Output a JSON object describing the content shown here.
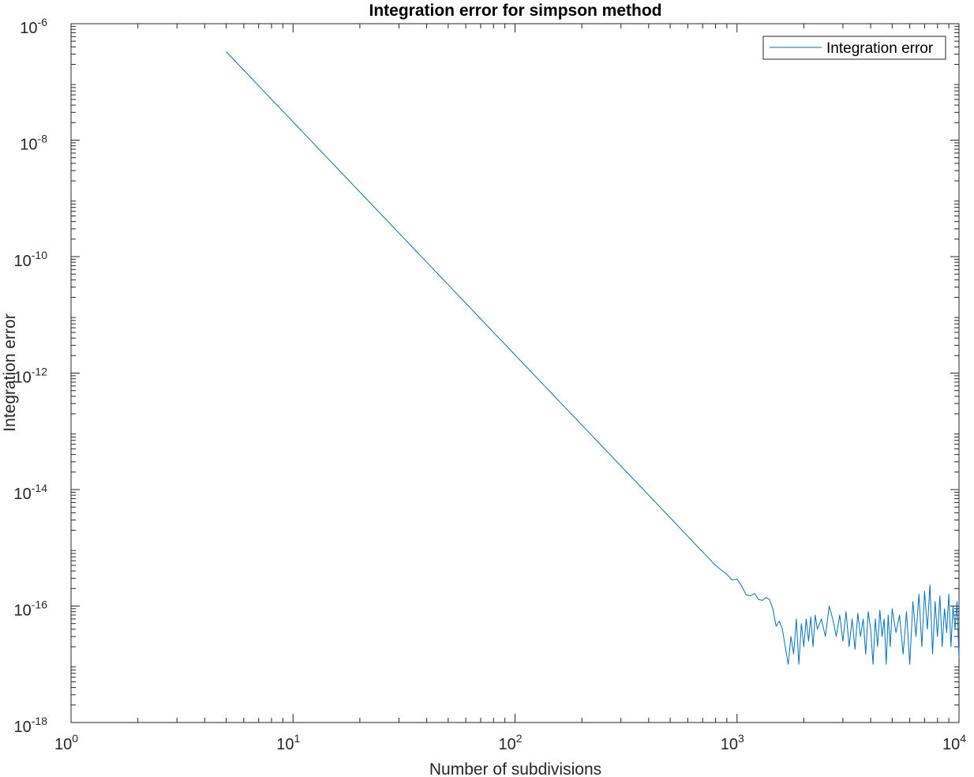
{
  "chart_data": {
    "type": "line",
    "title": "Integration error for simpson method",
    "xlabel": "Number of subdivisions",
    "ylabel": "Integration error",
    "xscale": "log",
    "yscale": "log",
    "xlim": [
      1,
      10000
    ],
    "ylim": [
      1e-18,
      1e-06
    ],
    "x_ticks": [
      {
        "base": "10",
        "exp": "0"
      },
      {
        "base": "10",
        "exp": "1"
      },
      {
        "base": "10",
        "exp": "2"
      },
      {
        "base": "10",
        "exp": "3"
      },
      {
        "base": "10",
        "exp": "4"
      }
    ],
    "y_ticks": [
      {
        "base": "10",
        "exp": "-18"
      },
      {
        "base": "10",
        "exp": "-16"
      },
      {
        "base": "10",
        "exp": "-14"
      },
      {
        "base": "10",
        "exp": "-12"
      },
      {
        "base": "10",
        "exp": "-10"
      },
      {
        "base": "10",
        "exp": "-8"
      },
      {
        "base": "10",
        "exp": "-6"
      }
    ],
    "grid": false,
    "legend_position": "top-right",
    "series": [
      {
        "name": "Integration error",
        "color": "#0072bd",
        "smooth_region": {
          "x_start": 5,
          "y_start": 3.3e-07,
          "x_end": 800,
          "y_end": 5e-16,
          "slope": -4
        },
        "points": [
          [
            900,
            3.5e-16
          ],
          [
            950,
            2.8e-16
          ],
          [
            1000,
            2.9e-16
          ],
          [
            1050,
            2.2e-16
          ],
          [
            1100,
            1.55e-16
          ],
          [
            1150,
            1.5e-16
          ],
          [
            1200,
            1.65e-16
          ],
          [
            1250,
            1.3e-16
          ],
          [
            1300,
            1.25e-16
          ],
          [
            1350,
            1.4e-16
          ],
          [
            1400,
            1.3e-16
          ],
          [
            1450,
            9e-17
          ],
          [
            1500,
            4.5e-17
          ],
          [
            1550,
            5.5e-17
          ],
          [
            1600,
            4e-17
          ],
          [
            1650,
            2e-17
          ],
          [
            1700,
            1e-17
          ],
          [
            1750,
            3e-17
          ],
          [
            1800,
            1.5e-17
          ],
          [
            1850,
            6e-17
          ],
          [
            1900,
            1e-17
          ],
          [
            1950,
            5e-17
          ],
          [
            2000,
            2e-17
          ],
          [
            2050,
            6e-17
          ],
          [
            2100,
            2.5e-17
          ],
          [
            2150,
            6.5e-17
          ],
          [
            2200,
            2e-17
          ],
          [
            2250,
            7e-17
          ],
          [
            2300,
            4e-17
          ],
          [
            2400,
            6e-17
          ],
          [
            2500,
            3e-17
          ],
          [
            2600,
            1e-16
          ],
          [
            2700,
            6e-17
          ],
          [
            2800,
            3e-17
          ],
          [
            2900,
            7e-17
          ],
          [
            3000,
            2.5e-17
          ],
          [
            3100,
            8e-17
          ],
          [
            3200,
            2e-17
          ],
          [
            3300,
            6e-17
          ],
          [
            3400,
            1.8e-17
          ],
          [
            3500,
            7.5e-17
          ],
          [
            3600,
            3e-17
          ],
          [
            3700,
            6e-17
          ],
          [
            3800,
            1.5e-17
          ],
          [
            3900,
            8e-17
          ],
          [
            4000,
            4e-17
          ],
          [
            4100,
            1e-17
          ],
          [
            4200,
            6e-17
          ],
          [
            4300,
            2e-17
          ],
          [
            4400,
            8.5e-17
          ],
          [
            4500,
            3e-17
          ],
          [
            4600,
            6e-17
          ],
          [
            4700,
            1e-17
          ],
          [
            4800,
            7e-17
          ],
          [
            4900,
            2e-17
          ],
          [
            5000,
            9e-17
          ],
          [
            5200,
            3.5e-17
          ],
          [
            5400,
            7e-17
          ],
          [
            5600,
            1.5e-17
          ],
          [
            5800,
            8e-17
          ],
          [
            6000,
            1e-17
          ],
          [
            6200,
            1.2e-16
          ],
          [
            6400,
            3e-17
          ],
          [
            6600,
            1.6e-16
          ],
          [
            6800,
            2e-17
          ],
          [
            7000,
            1.8e-16
          ],
          [
            7200,
            4e-17
          ],
          [
            7400,
            2.3e-16
          ],
          [
            7600,
            1.5e-17
          ],
          [
            7800,
            1.2e-16
          ],
          [
            8000,
            3e-17
          ],
          [
            8200,
            1.5e-16
          ],
          [
            8400,
            2e-17
          ],
          [
            8600,
            9e-17
          ],
          [
            8800,
            3.5e-17
          ],
          [
            9000,
            1.6e-16
          ],
          [
            9200,
            2e-17
          ],
          [
            9400,
            1e-16
          ],
          [
            9600,
            4e-17
          ],
          [
            9800,
            1.2e-16
          ],
          [
            10000,
            1.3e-17
          ]
        ]
      }
    ]
  }
}
